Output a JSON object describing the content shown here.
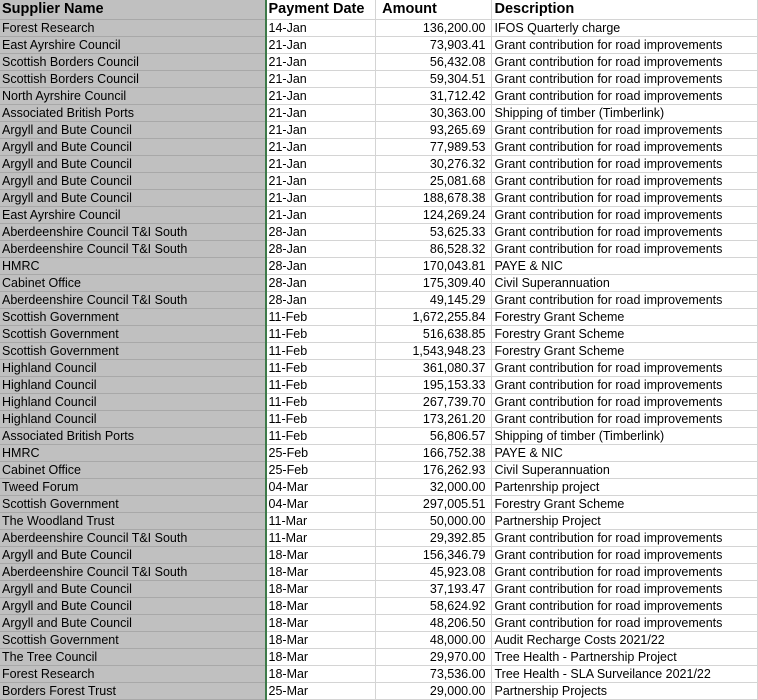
{
  "headers": [
    "Supplier Name",
    "Payment Date",
    "Amount",
    "Description"
  ],
  "rows": [
    [
      "Forest Research",
      "14-Jan",
      "136,200.00",
      "IFOS Quarterly charge"
    ],
    [
      "East Ayrshire Council",
      "21-Jan",
      "73,903.41",
      "Grant contribution for road improvements"
    ],
    [
      "Scottish Borders Council",
      "21-Jan",
      "56,432.08",
      "Grant contribution for road improvements"
    ],
    [
      "Scottish Borders Council",
      "21-Jan",
      "59,304.51",
      "Grant contribution for road improvements"
    ],
    [
      "North Ayrshire Council",
      "21-Jan",
      "31,712.42",
      "Grant contribution for road improvements"
    ],
    [
      "Associated British Ports",
      "21-Jan",
      "30,363.00",
      "Shipping of timber (Timberlink)"
    ],
    [
      "Argyll and Bute Council",
      "21-Jan",
      "93,265.69",
      "Grant contribution for road improvements"
    ],
    [
      "Argyll and Bute Council",
      "21-Jan",
      "77,989.53",
      "Grant contribution for road improvements"
    ],
    [
      "Argyll and Bute Council",
      "21-Jan",
      "30,276.32",
      "Grant contribution for road improvements"
    ],
    [
      "Argyll and Bute Council",
      "21-Jan",
      "25,081.68",
      "Grant contribution for road improvements"
    ],
    [
      "Argyll and Bute Council",
      "21-Jan",
      "188,678.38",
      "Grant contribution for road improvements"
    ],
    [
      "East Ayrshire Council",
      "21-Jan",
      "124,269.24",
      "Grant contribution for road improvements"
    ],
    [
      "Aberdeenshire Council T&I South",
      "28-Jan",
      "53,625.33",
      "Grant contribution for road improvements"
    ],
    [
      "Aberdeenshire Council T&I South",
      "28-Jan",
      "86,528.32",
      "Grant contribution for road improvements"
    ],
    [
      "HMRC",
      "28-Jan",
      "170,043.81",
      "PAYE & NIC"
    ],
    [
      "Cabinet Office",
      "28-Jan",
      "175,309.40",
      "Civil Superannuation"
    ],
    [
      "Aberdeenshire Council T&I South",
      "28-Jan",
      "49,145.29",
      "Grant contribution for road improvements"
    ],
    [
      "Scottish Government",
      "11-Feb",
      "1,672,255.84",
      "Forestry Grant Scheme"
    ],
    [
      "Scottish Government",
      "11-Feb",
      "516,638.85",
      "Forestry Grant Scheme"
    ],
    [
      "Scottish Government",
      "11-Feb",
      "1,543,948.23",
      "Forestry Grant Scheme"
    ],
    [
      "Highland Council",
      "11-Feb",
      "361,080.37",
      "Grant contribution for road improvements"
    ],
    [
      "Highland Council",
      "11-Feb",
      "195,153.33",
      "Grant contribution for road improvements"
    ],
    [
      "Highland Council",
      "11-Feb",
      "267,739.70",
      "Grant contribution for road improvements"
    ],
    [
      "Highland Council",
      "11-Feb",
      "173,261.20",
      "Grant contribution for road improvements"
    ],
    [
      "Associated British Ports",
      "11-Feb",
      "56,806.57",
      "Shipping of timber (Timberlink)"
    ],
    [
      "HMRC",
      "25-Feb",
      "166,752.38",
      "PAYE & NIC"
    ],
    [
      "Cabinet Office",
      "25-Feb",
      "176,262.93",
      "Civil Superannuation"
    ],
    [
      "Tweed Forum",
      "04-Mar",
      "32,000.00",
      "Partenrship project"
    ],
    [
      "Scottish Government",
      "04-Mar",
      "297,005.51",
      "Forestry Grant Scheme"
    ],
    [
      "The Woodland Trust",
      "11-Mar",
      "50,000.00",
      "Partnership Project"
    ],
    [
      "Aberdeenshire Council T&I South",
      "11-Mar",
      "29,392.85",
      "Grant contribution for road improvements"
    ],
    [
      "Argyll and Bute Council",
      "18-Mar",
      "156,346.79",
      "Grant contribution for road improvements"
    ],
    [
      "Aberdeenshire Council T&I South",
      "18-Mar",
      "45,923.08",
      "Grant contribution for road improvements"
    ],
    [
      "Argyll and Bute Council",
      "18-Mar",
      "37,193.47",
      "Grant contribution for road improvements"
    ],
    [
      "Argyll and Bute Council",
      "18-Mar",
      "58,624.92",
      "Grant contribution for road improvements"
    ],
    [
      "Argyll and Bute Council",
      "18-Mar",
      "48,206.50",
      "Grant contribution for road improvements"
    ],
    [
      "Scottish Government",
      "18-Mar",
      "48,000.00",
      "Audit Recharge Costs 2021/22"
    ],
    [
      "The Tree Council",
      "18-Mar",
      "29,970.00",
      "Tree Health - Partnership Project"
    ],
    [
      "Forest Research",
      "18-Mar",
      "73,536.00",
      "Tree Health - SLA Surveilance 2021/22"
    ],
    [
      "Borders Forest Trust",
      "25-Mar",
      "29,000.00",
      "Partnership Projects"
    ]
  ]
}
